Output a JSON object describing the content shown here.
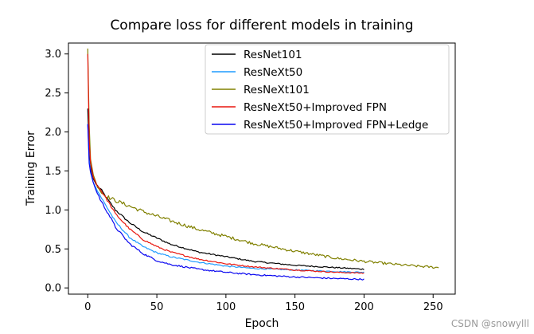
{
  "chart_data": {
    "type": "line",
    "title": "Compare loss for different models in training",
    "xlabel": "Epoch",
    "ylabel": "Training Error",
    "xlim": [
      -14,
      266
    ],
    "ylim": [
      -0.08,
      3.14
    ],
    "xticks": [
      0,
      50,
      100,
      150,
      200,
      250
    ],
    "xtick_labels": [
      "0",
      "50",
      "100",
      "150",
      "200",
      "250"
    ],
    "yticks": [
      0.0,
      0.5,
      1.0,
      1.5,
      2.0,
      2.5,
      3.0
    ],
    "ytick_labels": [
      "0.0",
      "0.5",
      "1.0",
      "1.5",
      "2.0",
      "2.5",
      "3.0"
    ],
    "grid": false,
    "legend_position": "top-right",
    "series": [
      {
        "name": "ResNet101",
        "color": "#000000",
        "noise": 0.006,
        "x": [
          0,
          1,
          2,
          4,
          6,
          10,
          15,
          20,
          30,
          40,
          50,
          60,
          80,
          100,
          120,
          150,
          180,
          200
        ],
        "y": [
          2.3,
          1.75,
          1.55,
          1.4,
          1.33,
          1.25,
          1.12,
          1.0,
          0.84,
          0.72,
          0.64,
          0.56,
          0.46,
          0.4,
          0.34,
          0.29,
          0.26,
          0.24
        ]
      },
      {
        "name": "ResNeXt50",
        "color": "#1f9bff",
        "noise": 0.006,
        "x": [
          0,
          1,
          2,
          4,
          6,
          10,
          15,
          20,
          30,
          40,
          50,
          60,
          80,
          100,
          120,
          150,
          180,
          200
        ],
        "y": [
          2.1,
          1.65,
          1.5,
          1.35,
          1.28,
          1.15,
          1.0,
          0.85,
          0.65,
          0.53,
          0.45,
          0.4,
          0.33,
          0.28,
          0.25,
          0.23,
          0.21,
          0.2
        ]
      },
      {
        "name": "ResNeXt101",
        "color": "#808000",
        "noise": 0.012,
        "x": [
          0,
          1,
          2,
          4,
          6,
          10,
          15,
          20,
          30,
          40,
          50,
          60,
          80,
          100,
          120,
          150,
          180,
          200,
          230,
          254
        ],
        "y": [
          3.07,
          2.1,
          1.65,
          1.45,
          1.35,
          1.22,
          1.16,
          1.12,
          1.05,
          0.98,
          0.92,
          0.86,
          0.75,
          0.66,
          0.57,
          0.47,
          0.38,
          0.34,
          0.29,
          0.26
        ]
      },
      {
        "name": "ResNeXt50+Improved FPN",
        "color": "#e8160e",
        "noise": 0.006,
        "x": [
          0,
          1,
          2,
          4,
          6,
          10,
          15,
          20,
          30,
          40,
          50,
          60,
          80,
          100,
          120,
          150,
          180,
          200
        ],
        "y": [
          3.0,
          1.9,
          1.6,
          1.42,
          1.34,
          1.24,
          1.1,
          0.95,
          0.76,
          0.62,
          0.53,
          0.46,
          0.37,
          0.31,
          0.27,
          0.23,
          0.2,
          0.19
        ]
      },
      {
        "name": "ResNeXt50+Improved FPN+Ledge",
        "color": "#0a07f0",
        "noise": 0.008,
        "x": [
          0,
          1,
          2,
          4,
          6,
          10,
          15,
          20,
          30,
          40,
          50,
          60,
          80,
          100,
          120,
          150,
          180,
          200
        ],
        "y": [
          2.1,
          1.6,
          1.48,
          1.35,
          1.25,
          1.1,
          0.95,
          0.78,
          0.57,
          0.44,
          0.35,
          0.3,
          0.24,
          0.2,
          0.17,
          0.14,
          0.12,
          0.11
        ]
      }
    ]
  },
  "watermark": "CSDN @snowylll"
}
